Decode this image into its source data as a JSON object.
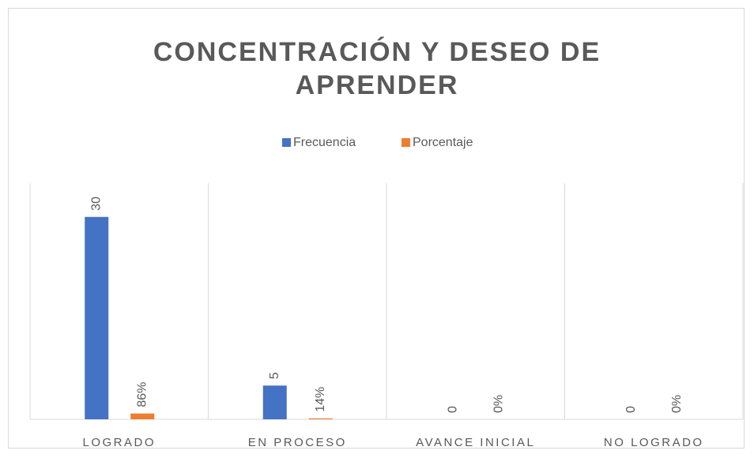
{
  "chart_data": {
    "type": "bar",
    "title": "CONCENTRACIÓN Y DESEO DE APRENDER",
    "categories": [
      "LOGRADO",
      "EN PROCESO",
      "AVANCE INICIAL",
      "NO LOGRADO"
    ],
    "series": [
      {
        "name": "Frecuencia",
        "color": "#4472c4",
        "values": [
          30,
          5,
          0,
          0
        ]
      },
      {
        "name": "Porcentaje",
        "color": "#ed7d31",
        "values": [
          0.86,
          0.14,
          0,
          0
        ],
        "value_labels": [
          "86%",
          "14%",
          "0%",
          "0%"
        ]
      }
    ],
    "ylim": [
      0,
      35
    ],
    "legend": "top"
  }
}
